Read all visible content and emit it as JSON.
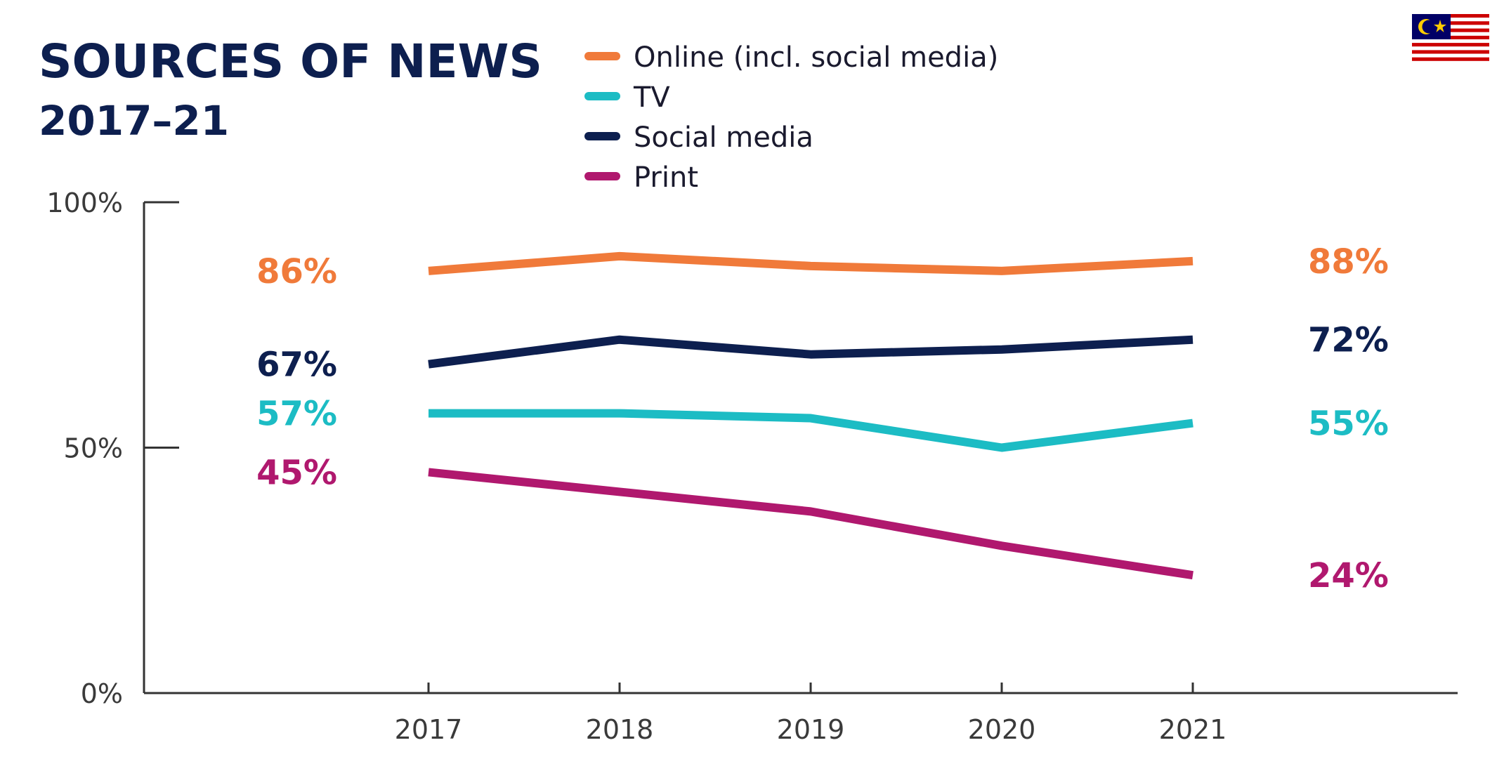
{
  "title": "SOURCES OF NEWS",
  "subtitle": "2017–21",
  "flag": {
    "country": "Malaysia",
    "icon": "malaysia-flag-icon"
  },
  "chart_data": {
    "type": "line",
    "title": "SOURCES OF NEWS",
    "subtitle": "2017–21",
    "x": [
      "2017",
      "2018",
      "2019",
      "2020",
      "2021"
    ],
    "ylim": [
      0,
      100
    ],
    "yticks": [
      0,
      50,
      100
    ],
    "ytick_labels": [
      "0%",
      "50%",
      "100%"
    ],
    "legend_position": "top",
    "grid": false,
    "series": [
      {
        "name": "Online (incl. social media)",
        "color": "#f07a3a",
        "values": [
          86,
          89,
          87,
          86,
          88
        ],
        "start_label": "86%",
        "end_label": "88%"
      },
      {
        "name": "TV",
        "color": "#1cbcc4",
        "values": [
          57,
          57,
          56,
          50,
          55
        ],
        "start_label": "57%",
        "end_label": "55%"
      },
      {
        "name": "Social media",
        "color": "#0d1f4f",
        "values": [
          67,
          72,
          69,
          70,
          72
        ],
        "start_label": "67%",
        "end_label": "72%"
      },
      {
        "name": "Print",
        "color": "#b0186e",
        "values": [
          45,
          41,
          37,
          30,
          24
        ],
        "start_label": "45%",
        "end_label": "24%"
      }
    ]
  }
}
